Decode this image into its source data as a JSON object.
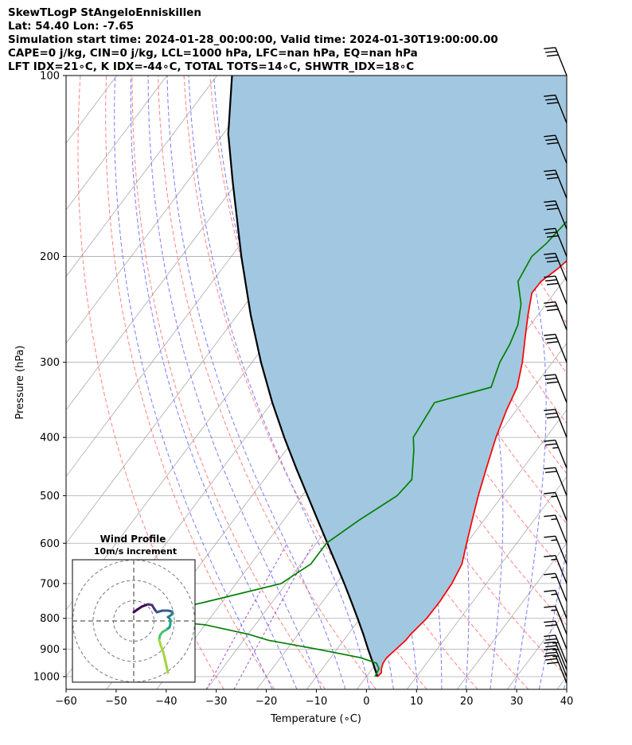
{
  "header": {
    "line1": "SkewTLogP StAngeloEnniskillen",
    "line2": "Lat: 54.40   Lon: -7.65",
    "line3": "Simulation start time: 2024-01-28_00:00:00, Valid time: 2024-01-30T19:00:00.00",
    "line4": "CAPE=0 j/kg, CIN=0 j/kg, LCL=1000 hPa, LFC=nan hPa, EQ=nan hPa",
    "line5": "LFT IDX=21∘C, K IDX=-44∘C, TOTAL TOTS=14∘C, SHWTR_IDX=18∘C"
  },
  "chart_data": {
    "type": "line",
    "subtype": "skew-t log-p",
    "xlabel": "Temperature (∘C)",
    "ylabel": "Pressure (hPa)",
    "xlim": [
      -60,
      40
    ],
    "ylim": [
      1050,
      100
    ],
    "x_ticks": [
      -60,
      -50,
      -40,
      -30,
      -20,
      -10,
      0,
      10,
      20,
      30,
      40
    ],
    "x_tick_labels": [
      "−60",
      "−50",
      "−40",
      "−30",
      "−20",
      "−10",
      "0",
      "10",
      "20",
      "30",
      "40"
    ],
    "y_ticks": [
      1000,
      900,
      800,
      700,
      600,
      500,
      400,
      300,
      200,
      100
    ],
    "y_tick_labels": [
      "1000",
      "900",
      "800",
      "700",
      "600",
      "500",
      "400",
      "300",
      "200",
      "100"
    ],
    "colors": {
      "temperature": "#ff0000",
      "dewpoint": "#008000",
      "parcel": "#000000",
      "shade": "#a2c7e0",
      "dry_adiabat": "#ff6b6b",
      "moist_adiabat": "#6b6bff",
      "isotherm": "#aaaaaa",
      "mixing": "#9a4bd0"
    },
    "series": [
      {
        "name": "Temperature",
        "unit": "∘C",
        "points": [
          [
            1000,
            2.2
          ],
          [
            985,
            2.4
          ],
          [
            970,
            1.8
          ],
          [
            950,
            1.3
          ],
          [
            930,
            1.2
          ],
          [
            900,
            1.8
          ],
          [
            870,
            2.4
          ],
          [
            850,
            2.5
          ],
          [
            800,
            3.3
          ],
          [
            750,
            3.4
          ],
          [
            700,
            3.1
          ],
          [
            650,
            2.2
          ],
          [
            600,
            0
          ],
          [
            550,
            -2.3
          ],
          [
            500,
            -4.8
          ],
          [
            450,
            -7.3
          ],
          [
            400,
            -10
          ],
          [
            360,
            -12
          ],
          [
            330,
            -13.3
          ],
          [
            300,
            -16
          ],
          [
            270,
            -19.5
          ],
          [
            250,
            -22
          ],
          [
            230,
            -24.5
          ],
          [
            220,
            -24.4
          ],
          [
            210,
            -23
          ],
          [
            200,
            -22
          ],
          [
            190,
            -21.5
          ],
          [
            180,
            -21.3
          ],
          [
            170,
            -21.5
          ],
          [
            160,
            -21.5
          ],
          [
            150,
            -20
          ],
          [
            140,
            -18.3
          ],
          [
            130,
            -15.8
          ],
          [
            120,
            -13.5
          ],
          [
            110,
            -12.4
          ],
          [
            100,
            -11.2
          ]
        ]
      },
      {
        "name": "Dewpoint",
        "unit": "∘C",
        "points": [
          [
            1000,
            1.7
          ],
          [
            970,
            1.3
          ],
          [
            950,
            0
          ],
          [
            930,
            -4
          ],
          [
            900,
            -14
          ],
          [
            870,
            -25
          ],
          [
            850,
            -30
          ],
          [
            820,
            -40
          ],
          [
            800,
            -55
          ],
          [
            750,
            -43
          ],
          [
            700,
            -31
          ],
          [
            650,
            -28
          ],
          [
            600,
            -28
          ],
          [
            550,
            -25
          ],
          [
            500,
            -21
          ],
          [
            470,
            -20.5
          ],
          [
            420,
            -24.5
          ],
          [
            400,
            -26.5
          ],
          [
            350,
            -27.5
          ],
          [
            330,
            -18.5
          ],
          [
            300,
            -20.5
          ],
          [
            280,
            -21.2
          ],
          [
            260,
            -22.5
          ],
          [
            240,
            -25
          ],
          [
            220,
            -29
          ],
          [
            200,
            -30
          ],
          [
            190,
            -29
          ],
          [
            170,
            -28
          ],
          [
            150,
            -26.5
          ],
          [
            140,
            -28.5
          ],
          [
            130,
            -34
          ],
          [
            110,
            -38.5
          ],
          [
            100,
            -41
          ]
        ]
      },
      {
        "name": "Parcel",
        "unit": "∘C",
        "points": [
          [
            1000,
            2.2
          ],
          [
            950,
            -0.7
          ],
          [
            900,
            -3.8
          ],
          [
            850,
            -7.0
          ],
          [
            800,
            -10.5
          ],
          [
            750,
            -14.3
          ],
          [
            700,
            -18.4
          ],
          [
            650,
            -22.9
          ],
          [
            600,
            -27.8
          ],
          [
            550,
            -33.1
          ],
          [
            500,
            -38.9
          ],
          [
            450,
            -45.3
          ],
          [
            400,
            -52.3
          ],
          [
            350,
            -59.9
          ],
          [
            300,
            -68.2
          ],
          [
            250,
            -77.4
          ],
          [
            200,
            -88
          ],
          [
            150,
            -101
          ],
          [
            125,
            -109
          ],
          [
            100,
            -117
          ]
        ]
      }
    ],
    "wind_barbs": {
      "pressures": [
        100,
        120,
        140,
        160,
        180,
        200,
        220,
        240,
        265,
        300,
        350,
        400,
        450,
        500,
        550,
        600,
        650,
        700,
        750,
        800,
        850,
        900,
        950,
        975,
        1000,
        1025
      ],
      "speeds_kt": [
        30,
        30,
        30,
        30,
        30,
        30,
        30,
        30,
        30,
        30,
        30,
        30,
        25,
        20,
        15,
        15,
        15,
        15,
        15,
        15,
        15,
        20,
        25,
        25,
        25,
        30
      ]
    },
    "hodograph": {
      "title": "Wind Profile",
      "subtitle": "10m/s increment",
      "rings_ms": [
        10,
        20,
        30
      ]
    }
  }
}
